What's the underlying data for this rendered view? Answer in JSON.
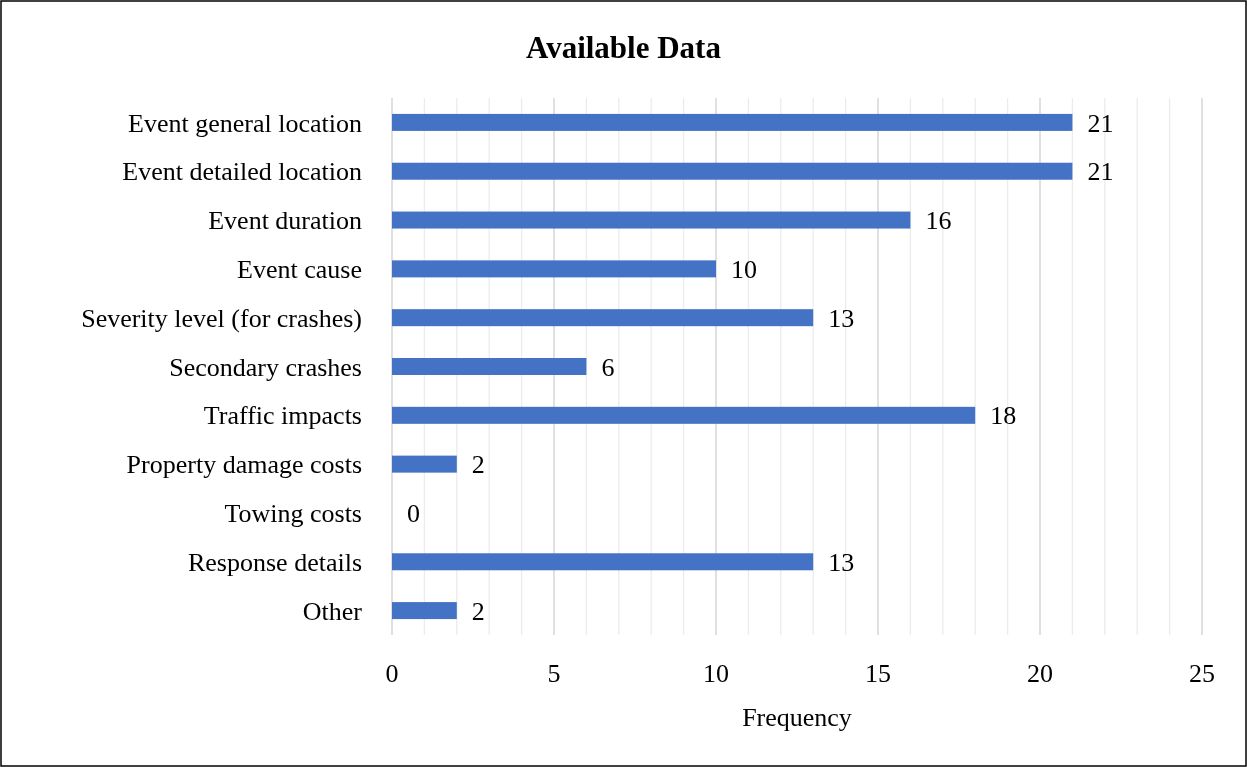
{
  "chart_data": {
    "type": "bar",
    "orientation": "horizontal",
    "title": "Available Data",
    "xlabel": "Frequency",
    "categories": [
      "Event general location",
      "Event detailed location",
      "Event duration",
      "Event cause",
      "Severity level (for crashes)",
      "Secondary crashes",
      "Traffic impacts",
      "Property damage costs",
      "Towing costs",
      "Response details",
      "Other"
    ],
    "values": [
      21,
      21,
      16,
      10,
      13,
      6,
      18,
      2,
      0,
      13,
      2
    ],
    "color": "#4472c4",
    "xlim": [
      0,
      25
    ],
    "xticks": [
      0,
      {
        "value": 1,
        "label": null
      },
      {
        "value": 2,
        "label": null
      },
      {
        "value": 3,
        "label": null
      },
      {
        "value": 4,
        "label": null
      },
      5,
      {
        "value": 6,
        "label": null
      },
      {
        "value": 7,
        "label": null
      },
      {
        "value": 8,
        "label": null
      },
      {
        "value": 9,
        "label": null
      },
      10,
      {
        "value": 11,
        "label": null
      },
      {
        "value": 12,
        "label": null
      },
      {
        "value": 13,
        "label": null
      },
      {
        "value": 14,
        "label": null
      },
      15,
      {
        "value": 16,
        "label": null
      },
      {
        "value": 17,
        "label": null
      },
      {
        "value": 18,
        "label": null
      },
      {
        "value": 19,
        "label": null
      },
      20,
      {
        "value": 21,
        "label": null
      },
      {
        "value": 22,
        "label": null
      },
      {
        "value": 23,
        "label": null
      },
      {
        "value": 24,
        "label": null
      },
      25
    ],
    "grid": "x",
    "data_labels": true
  }
}
